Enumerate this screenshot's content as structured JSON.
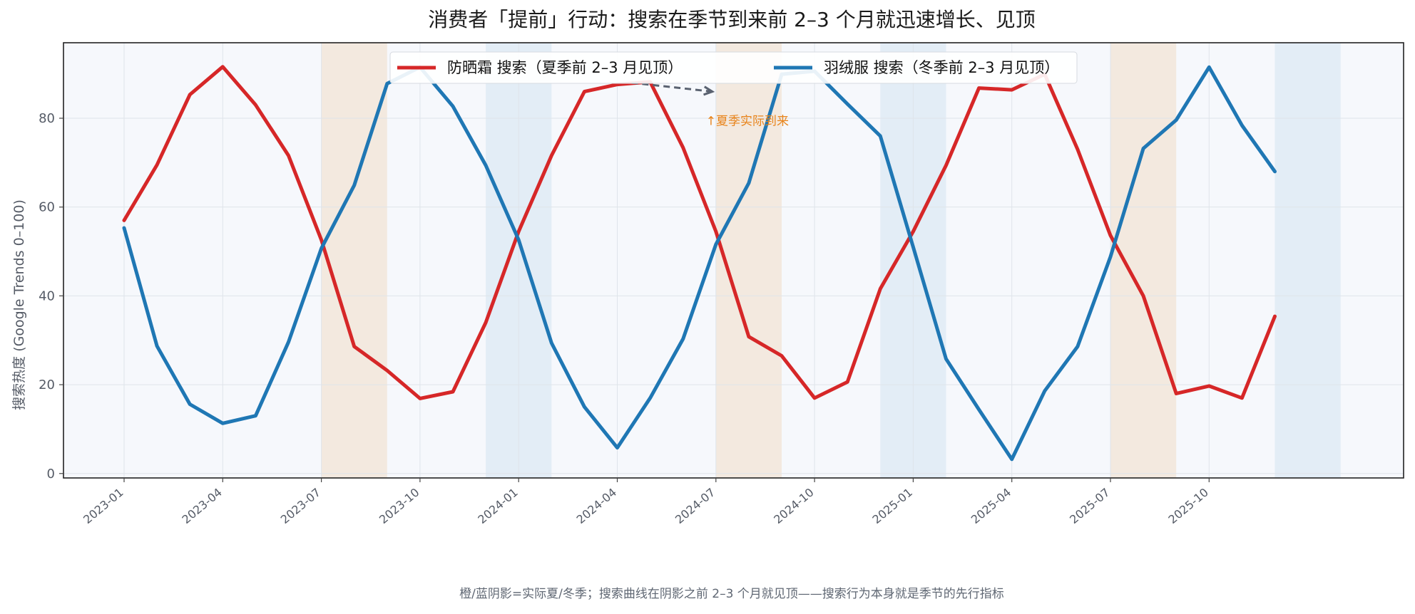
{
  "chart_data": {
    "type": "line",
    "title": "消费者「提前」行动：搜索在季节到来前 2–3 个月就迅速增长、见顶",
    "xlabel": "",
    "ylabel": "搜索热度 (Google Trends 0–100)",
    "ylim": [
      -1,
      97
    ],
    "yticks": [
      0,
      20,
      40,
      60,
      80
    ],
    "x": [
      "2023-01",
      "2023-02",
      "2023-03",
      "2023-04",
      "2023-05",
      "2023-06",
      "2023-07",
      "2023-08",
      "2023-09",
      "2023-10",
      "2023-11",
      "2023-12",
      "2024-01",
      "2024-02",
      "2024-03",
      "2024-04",
      "2024-05",
      "2024-06",
      "2024-07",
      "2024-08",
      "2024-09",
      "2024-10",
      "2024-11",
      "2024-12",
      "2025-01",
      "2025-02",
      "2025-03",
      "2025-04",
      "2025-05",
      "2025-06",
      "2025-07",
      "2025-08",
      "2025-09",
      "2025-10",
      "2025-11",
      "2025-12"
    ],
    "xticks": [
      "2023-01",
      "2023-04",
      "2023-07",
      "2023-10",
      "2024-01",
      "2024-04",
      "2024-07",
      "2024-10",
      "2025-01",
      "2025-04",
      "2025-07",
      "2025-10"
    ],
    "series": [
      {
        "name": "防晒霜 搜索（夏季前 2–3 月见顶）",
        "color": "#d62728",
        "values": [
          57,
          69.5,
          85.3,
          91.6,
          83,
          71.6,
          52.6,
          28.6,
          23.2,
          16.9,
          18.4,
          34,
          54.5,
          71.6,
          86,
          87.6,
          88.2,
          73.4,
          54.5,
          30.8,
          26.5,
          17,
          20.6,
          41.6,
          54.5,
          69.4,
          86.8,
          86.4,
          89.9,
          73,
          53.6,
          40,
          18,
          19.7,
          17,
          35.4
        ]
      },
      {
        "name": "羽绒服 搜索（冬季前 2–3 月见顶）",
        "color": "#1f77b4",
        "values": [
          55.3,
          28.7,
          15.6,
          11.3,
          13,
          29.6,
          50.7,
          64.9,
          87.8,
          91.5,
          82.7,
          69.4,
          52.6,
          29.4,
          15,
          5.8,
          17,
          30.3,
          51.6,
          65.4,
          89.9,
          90.6,
          83.2,
          76,
          51,
          25.8,
          14.4,
          3.2,
          18.6,
          28.6,
          48.8,
          73.2,
          79.6,
          91.5,
          78.4,
          68
        ]
      }
    ],
    "shaded_periods": [
      {
        "season": "summer",
        "start": "2023-07",
        "end": "2023-09",
        "color": "#f3e9df"
      },
      {
        "season": "winter",
        "start": "2023-12",
        "end": "2024-02",
        "color": "#e3edf6"
      },
      {
        "season": "summer",
        "start": "2024-07",
        "end": "2024-09",
        "color": "#f3e9df"
      },
      {
        "season": "winter",
        "start": "2024-12",
        "end": "2025-02",
        "color": "#e3edf6"
      },
      {
        "season": "summer",
        "start": "2025-07",
        "end": "2025-09",
        "color": "#f3e9df"
      },
      {
        "season": "winter",
        "start": "2025-12",
        "end": "2026-02",
        "color": "#e3edf6"
      }
    ],
    "annotation": {
      "text": "↑夏季实际到来",
      "arrow_from": {
        "x": "2024-04",
        "y": 88
      },
      "arrow_to": {
        "x": "2024-07",
        "y": 86
      },
      "color": "#e8841b"
    },
    "legend_position": "top-center",
    "grid": true,
    "footnote": "橙/蓝阴影=实际夏/冬季；搜索曲线在阴影之前 2–3 个月就见顶——搜索行为本身就是季节的先行指标",
    "colors": {
      "plot_bg": "#f6f8fc",
      "grid": "#dfe4ea",
      "axis_text": "#555b66"
    }
  }
}
